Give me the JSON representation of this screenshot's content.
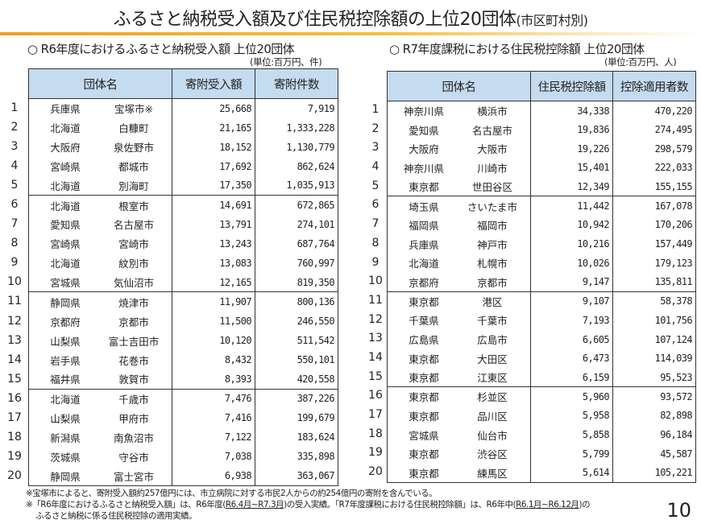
{
  "title": {
    "main": "ふるさと納税受入額及び住民税控除額の上位20団体",
    "suffix": "(市区町村別)"
  },
  "accent_color": "#f0a020",
  "header_bg_color": "#c5dbef",
  "left": {
    "heading": "○ R6年度におけるふるさと納税受入額 上位20団体",
    "unit": "(単位:百万円、件)",
    "columns": [
      "団体名",
      "寄附受入額",
      "寄附件数"
    ],
    "rows": [
      {
        "rank": "1",
        "pref": "兵庫県",
        "city": "宝塚市※",
        "v1": "25,668",
        "v2": "7,919"
      },
      {
        "rank": "2",
        "pref": "北海道",
        "city": "白糠町",
        "v1": "21,165",
        "v2": "1,333,228"
      },
      {
        "rank": "3",
        "pref": "大阪府",
        "city": "泉佐野市",
        "v1": "18,152",
        "v2": "1,130,779"
      },
      {
        "rank": "4",
        "pref": "宮崎県",
        "city": "都城市",
        "v1": "17,692",
        "v2": "862,624"
      },
      {
        "rank": "5",
        "pref": "北海道",
        "city": "別海町",
        "v1": "17,350",
        "v2": "1,035,913"
      },
      {
        "rank": "6",
        "pref": "北海道",
        "city": "根室市",
        "v1": "14,691",
        "v2": "672,865"
      },
      {
        "rank": "7",
        "pref": "愛知県",
        "city": "名古屋市",
        "v1": "13,791",
        "v2": "274,101"
      },
      {
        "rank": "8",
        "pref": "宮崎県",
        "city": "宮崎市",
        "v1": "13,243",
        "v2": "687,764"
      },
      {
        "rank": "9",
        "pref": "北海道",
        "city": "紋別市",
        "v1": "13,083",
        "v2": "760,997"
      },
      {
        "rank": "10",
        "pref": "宮城県",
        "city": "気仙沼市",
        "v1": "12,165",
        "v2": "819,350"
      },
      {
        "rank": "11",
        "pref": "静岡県",
        "city": "焼津市",
        "v1": "11,907",
        "v2": "800,136"
      },
      {
        "rank": "12",
        "pref": "京都府",
        "city": "京都市",
        "v1": "11,500",
        "v2": "246,550"
      },
      {
        "rank": "13",
        "pref": "山梨県",
        "city": "富士吉田市",
        "v1": "10,120",
        "v2": "511,542"
      },
      {
        "rank": "14",
        "pref": "岩手県",
        "city": "花巻市",
        "v1": "8,432",
        "v2": "550,101"
      },
      {
        "rank": "15",
        "pref": "福井県",
        "city": "敦賀市",
        "v1": "8,393",
        "v2": "420,558"
      },
      {
        "rank": "16",
        "pref": "北海道",
        "city": "千歳市",
        "v1": "7,476",
        "v2": "387,226"
      },
      {
        "rank": "17",
        "pref": "山梨県",
        "city": "甲府市",
        "v1": "7,416",
        "v2": "199,679"
      },
      {
        "rank": "18",
        "pref": "新潟県",
        "city": "南魚沼市",
        "v1": "7,122",
        "v2": "183,624"
      },
      {
        "rank": "19",
        "pref": "茨城県",
        "city": "守谷市",
        "v1": "7,038",
        "v2": "335,898"
      },
      {
        "rank": "20",
        "pref": "静岡県",
        "city": "富士宮市",
        "v1": "6,938",
        "v2": "363,067"
      }
    ]
  },
  "right": {
    "heading": "○ R7年度課税における住民税控除額 上位20団体",
    "unit": "(単位:百万円、人)",
    "columns": [
      "団体名",
      "住民税控除額",
      "控除適用者数"
    ],
    "rows": [
      {
        "rank": "1",
        "pref": "神奈川県",
        "city": "横浜市",
        "v1": "34,338",
        "v2": "470,220"
      },
      {
        "rank": "2",
        "pref": "愛知県",
        "city": "名古屋市",
        "v1": "19,836",
        "v2": "274,495"
      },
      {
        "rank": "3",
        "pref": "大阪府",
        "city": "大阪市",
        "v1": "19,226",
        "v2": "298,579"
      },
      {
        "rank": "4",
        "pref": "神奈川県",
        "city": "川崎市",
        "v1": "15,401",
        "v2": "222,033"
      },
      {
        "rank": "5",
        "pref": "東京都",
        "city": "世田谷区",
        "v1": "12,349",
        "v2": "155,155"
      },
      {
        "rank": "6",
        "pref": "埼玉県",
        "city": "さいたま市",
        "v1": "11,442",
        "v2": "167,078"
      },
      {
        "rank": "7",
        "pref": "福岡県",
        "city": "福岡市",
        "v1": "10,942",
        "v2": "170,206"
      },
      {
        "rank": "8",
        "pref": "兵庫県",
        "city": "神戸市",
        "v1": "10,216",
        "v2": "157,449"
      },
      {
        "rank": "9",
        "pref": "北海道",
        "city": "札幌市",
        "v1": "10,026",
        "v2": "179,123"
      },
      {
        "rank": "10",
        "pref": "京都府",
        "city": "京都市",
        "v1": "9,147",
        "v2": "135,811"
      },
      {
        "rank": "11",
        "pref": "東京都",
        "city": "港区",
        "v1": "9,107",
        "v2": "58,378"
      },
      {
        "rank": "12",
        "pref": "千葉県",
        "city": "千葉市",
        "v1": "7,193",
        "v2": "101,756"
      },
      {
        "rank": "13",
        "pref": "広島県",
        "city": "広島市",
        "v1": "6,605",
        "v2": "107,124"
      },
      {
        "rank": "14",
        "pref": "東京都",
        "city": "大田区",
        "v1": "6,473",
        "v2": "114,039"
      },
      {
        "rank": "15",
        "pref": "東京都",
        "city": "江東区",
        "v1": "6,159",
        "v2": "95,523"
      },
      {
        "rank": "16",
        "pref": "東京都",
        "city": "杉並区",
        "v1": "5,960",
        "v2": "93,572"
      },
      {
        "rank": "17",
        "pref": "東京都",
        "city": "品川区",
        "v1": "5,958",
        "v2": "82,898"
      },
      {
        "rank": "18",
        "pref": "宮城県",
        "city": "仙台市",
        "v1": "5,858",
        "v2": "96,184"
      },
      {
        "rank": "19",
        "pref": "東京都",
        "city": "渋谷区",
        "v1": "5,799",
        "v2": "45,587"
      },
      {
        "rank": "20",
        "pref": "東京都",
        "city": "練馬区",
        "v1": "5,614",
        "v2": "105,221"
      }
    ]
  },
  "notes": {
    "note1": "※宝塚市によると、寄附受入額約257億円には、市立病院に対する市民2人からの約254億円の寄附を含んでいる。",
    "note2_a": "※「R6年度におけるふるさと納税受入額」は、R6年度(",
    "note2_b": "R6.4月~R7.3月",
    "note2_c": ")の受入実績。「R7年度課税における住民税控除額」は、R6年中(",
    "note2_d": "R6.1月~R6.12月",
    "note2_e": ")の",
    "note3": "ふるさと納税に係る住民税控除の適用実績。"
  },
  "page_number": "10"
}
